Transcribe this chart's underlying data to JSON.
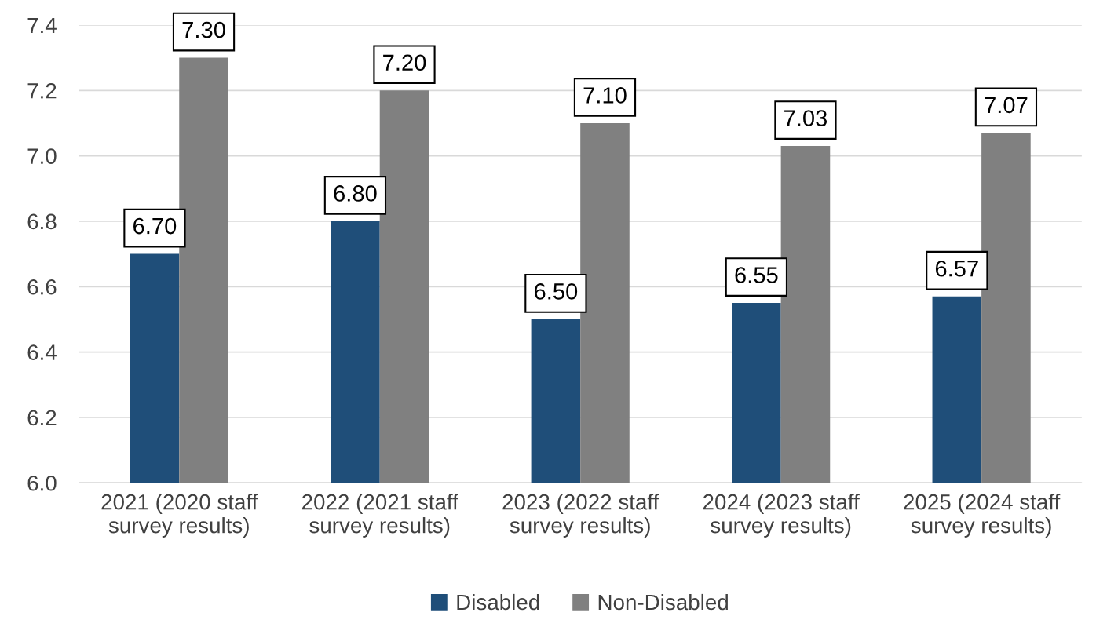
{
  "chart_data": {
    "type": "bar",
    "categories": [
      "2021 (2020 staff survey results)",
      "2022 (2021 staff survey results)",
      "2023 (2022 staff survey results)",
      "2024 (2023 staff survey results)",
      "2025 (2024 staff survey results)"
    ],
    "series": [
      {
        "name": "Disabled",
        "color": "#1f4e79",
        "values": [
          6.7,
          6.8,
          6.5,
          6.55,
          6.57
        ],
        "value_labels": [
          "6.70",
          "6.80",
          "6.50",
          "6.55",
          "6.57"
        ]
      },
      {
        "name": "Non-Disabled",
        "color": "#808080",
        "values": [
          7.3,
          7.2,
          7.1,
          7.03,
          7.07
        ],
        "value_labels": [
          "7.30",
          "7.20",
          "7.10",
          "7.03",
          "7.07"
        ]
      }
    ],
    "ylim": [
      6.0,
      7.4
    ],
    "yticks": [
      {
        "value": 6.0,
        "label": "6.0"
      },
      {
        "value": 6.2,
        "label": "6.2"
      },
      {
        "value": 6.4,
        "label": "6.4"
      },
      {
        "value": 6.6,
        "label": "6.6"
      },
      {
        "value": 6.8,
        "label": "6.8"
      },
      {
        "value": 7.0,
        "label": "7.0"
      },
      {
        "value": 7.2,
        "label": "7.2"
      },
      {
        "value": 7.4,
        "label": "7.4"
      }
    ],
    "grid": "y",
    "legend": "bottom"
  }
}
